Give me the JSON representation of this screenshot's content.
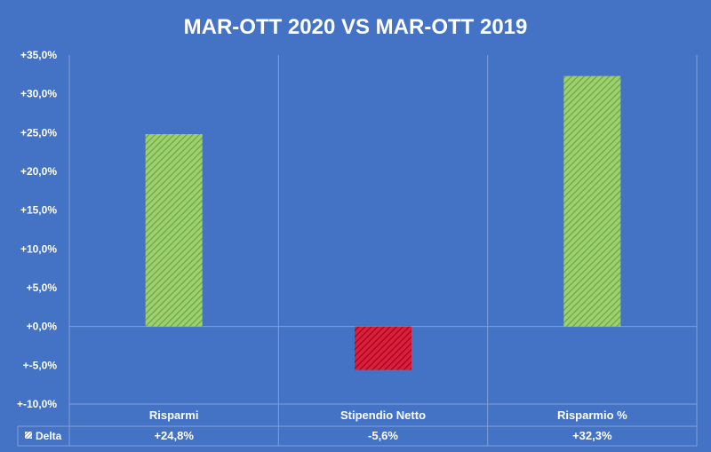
{
  "chart_data": {
    "type": "bar",
    "title": "MAR-OTT 2020 VS MAR-OTT 2019",
    "categories": [
      "Risparmi",
      "Stipendio Netto",
      "Risparmio %"
    ],
    "series": [
      {
        "name": "Delta",
        "values": [
          24.8,
          -5.6,
          32.3
        ],
        "labels": [
          "+24,8%",
          "-5,6%",
          "+32,3%"
        ]
      }
    ],
    "ylim": [
      -10,
      35
    ],
    "ytick_values": [
      35,
      30,
      25,
      20,
      15,
      10,
      5,
      0,
      -5,
      -10
    ],
    "ytick_labels": [
      "+35,0%",
      "+30,0%",
      "+25,0%",
      "+20,0%",
      "+15,0%",
      "+10,0%",
      "+5,0%",
      "+0,0%",
      "+-5,0%",
      "+-10,0%"
    ],
    "xlabel": "",
    "ylabel": "",
    "grid": "vertical category dividers",
    "data_table": true,
    "colors": {
      "background": "#4472C4",
      "positive": "#70AD47",
      "negative": "#C00000",
      "text": "#FFFFFF",
      "gridline": "#7F9FD6"
    }
  }
}
